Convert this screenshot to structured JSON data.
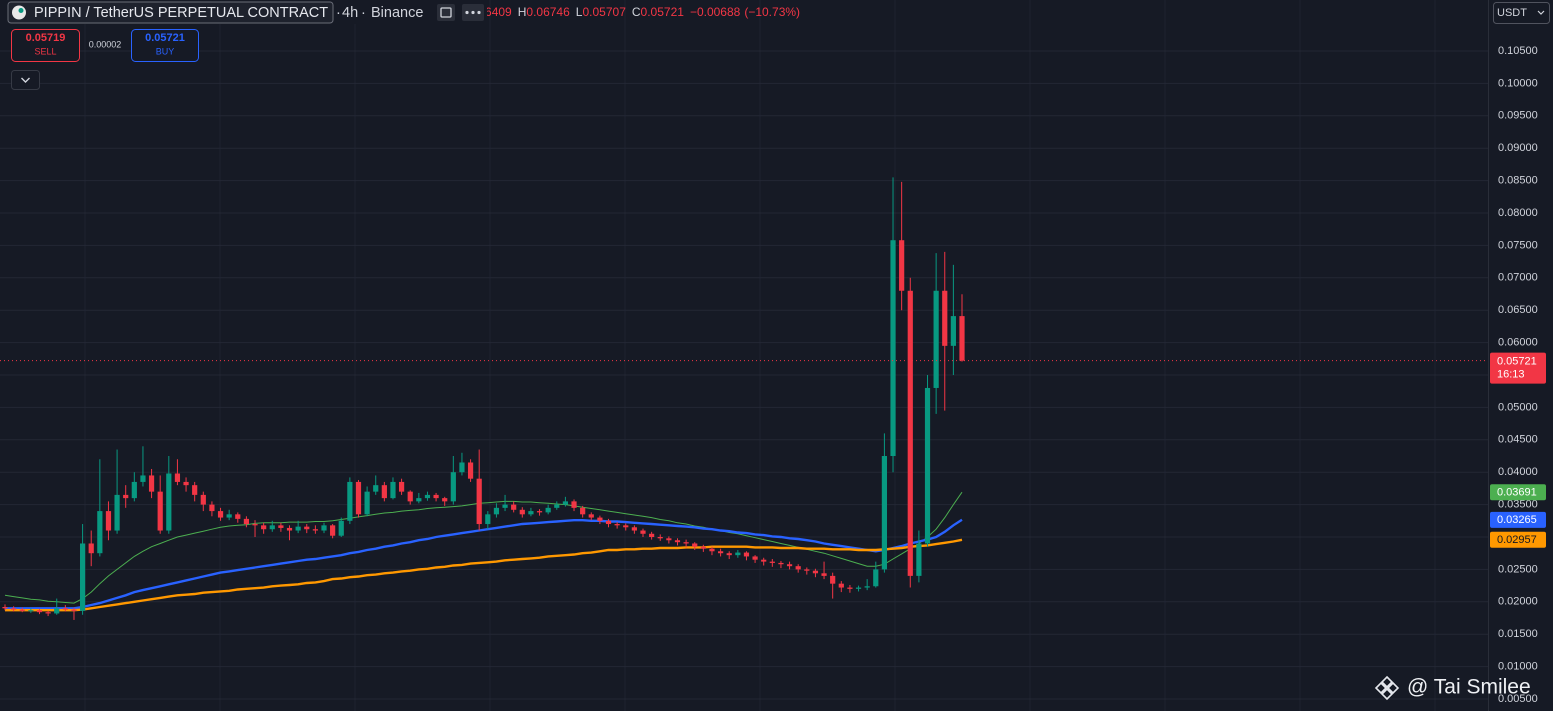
{
  "header": {
    "symbol": "PIPPIN / TetherUS PERPETUAL CONTRACT",
    "separator": "·",
    "interval": "4h",
    "exchange": "Binance",
    "ohlc_labels": [
      "O",
      "H",
      "L",
      "C"
    ],
    "change": "−0.00688",
    "change_pct": "(−10.73%)",
    "quote_currency": "USDT",
    "countdown": "16:13",
    "watermark": "@ Tai Smilee"
  },
  "order_panel": {
    "sell_price": "0.05719",
    "sell_label": "SELL",
    "spread": "0.00002",
    "buy_price": "0.05721",
    "buy_label": "BUY"
  },
  "chart_data": {
    "type": "candlestick",
    "up_color": "#089981",
    "down_color": "#f23645",
    "grid": true,
    "ylim": [
      0.00315,
      0.11287
    ],
    "yticks": [
      {
        "value": 0.005,
        "label": "0.00500"
      },
      {
        "value": 0.01,
        "label": "0.01000"
      },
      {
        "value": 0.015,
        "label": "0.01500"
      },
      {
        "value": 0.02,
        "label": "0.02000"
      },
      {
        "value": 0.025,
        "label": "0.02500"
      },
      {
        "value": 0.03,
        "label": "0.03000"
      },
      {
        "value": 0.035,
        "label": "0.03500"
      },
      {
        "value": 0.04,
        "label": "0.04000"
      },
      {
        "value": 0.045,
        "label": "0.04500"
      },
      {
        "value": 0.05,
        "label": "0.05000"
      },
      {
        "value": 0.055,
        "label": "0.05500"
      },
      {
        "value": 0.06,
        "label": "0.06000"
      },
      {
        "value": 0.065,
        "label": "0.06500"
      },
      {
        "value": 0.07,
        "label": "0.07000"
      },
      {
        "value": 0.075,
        "label": "0.07500"
      },
      {
        "value": 0.08,
        "label": "0.08000"
      },
      {
        "value": 0.085,
        "label": "0.08500"
      },
      {
        "value": 0.09,
        "label": "0.09000"
      },
      {
        "value": 0.095,
        "label": "0.09500"
      },
      {
        "value": 0.1,
        "label": "0.10000"
      },
      {
        "value": 0.105,
        "label": "0.10500"
      }
    ],
    "candles": [
      [
        0.0192,
        0.0196,
        0.0187,
        0.019
      ],
      [
        0.019,
        0.0193,
        0.0185,
        0.0188
      ],
      [
        0.0188,
        0.0191,
        0.0184,
        0.0186
      ],
      [
        0.0186,
        0.019,
        0.0183,
        0.0187
      ],
      [
        0.0187,
        0.0189,
        0.0181,
        0.0184
      ],
      [
        0.0184,
        0.0186,
        0.0178,
        0.0182
      ],
      [
        0.0182,
        0.0205,
        0.018,
        0.019
      ],
      [
        0.019,
        0.0195,
        0.0185,
        0.0188
      ],
      [
        0.0188,
        0.0191,
        0.0172,
        0.0186
      ],
      [
        0.0186,
        0.032,
        0.018,
        0.029
      ],
      [
        0.029,
        0.031,
        0.0255,
        0.0275
      ],
      [
        0.0275,
        0.042,
        0.027,
        0.034
      ],
      [
        0.034,
        0.0355,
        0.0295,
        0.031
      ],
      [
        0.031,
        0.0435,
        0.0305,
        0.0365
      ],
      [
        0.0365,
        0.038,
        0.0345,
        0.036
      ],
      [
        0.036,
        0.04,
        0.0355,
        0.0385
      ],
      [
        0.0385,
        0.044,
        0.0378,
        0.0395
      ],
      [
        0.0395,
        0.0405,
        0.036,
        0.037
      ],
      [
        0.037,
        0.0395,
        0.0305,
        0.031
      ],
      [
        0.031,
        0.0425,
        0.0305,
        0.0398
      ],
      [
        0.0398,
        0.042,
        0.038,
        0.0385
      ],
      [
        0.0385,
        0.0392,
        0.037,
        0.038
      ],
      [
        0.038,
        0.0385,
        0.0355,
        0.0365
      ],
      [
        0.0365,
        0.037,
        0.034,
        0.035
      ],
      [
        0.035,
        0.0355,
        0.0332,
        0.034
      ],
      [
        0.034,
        0.0345,
        0.0325,
        0.033
      ],
      [
        0.033,
        0.0342,
        0.0326,
        0.0335
      ],
      [
        0.0335,
        0.0338,
        0.0322,
        0.0328
      ],
      [
        0.0328,
        0.0332,
        0.0315,
        0.032
      ],
      [
        0.032,
        0.0326,
        0.03,
        0.0318
      ],
      [
        0.0318,
        0.0322,
        0.0305,
        0.0312
      ],
      [
        0.0312,
        0.0325,
        0.0308,
        0.0318
      ],
      [
        0.0318,
        0.0322,
        0.0308,
        0.0314
      ],
      [
        0.0314,
        0.0318,
        0.0295,
        0.031
      ],
      [
        0.031,
        0.0325,
        0.0306,
        0.0316
      ],
      [
        0.0316,
        0.032,
        0.0306,
        0.0312
      ],
      [
        0.0312,
        0.0318,
        0.0305,
        0.031
      ],
      [
        0.031,
        0.0322,
        0.0306,
        0.0318
      ],
      [
        0.0318,
        0.032,
        0.0298,
        0.0302
      ],
      [
        0.0302,
        0.033,
        0.03,
        0.0325
      ],
      [
        0.0325,
        0.0392,
        0.032,
        0.0385
      ],
      [
        0.0385,
        0.0388,
        0.033,
        0.0335
      ],
      [
        0.0335,
        0.0378,
        0.0332,
        0.037
      ],
      [
        0.037,
        0.0395,
        0.0365,
        0.038
      ],
      [
        0.038,
        0.0385,
        0.0355,
        0.036
      ],
      [
        0.036,
        0.0392,
        0.0358,
        0.0385
      ],
      [
        0.0385,
        0.039,
        0.0365,
        0.037
      ],
      [
        0.037,
        0.0372,
        0.035,
        0.0355
      ],
      [
        0.0355,
        0.0368,
        0.0352,
        0.036
      ],
      [
        0.036,
        0.037,
        0.0356,
        0.0365
      ],
      [
        0.0365,
        0.0368,
        0.0355,
        0.036
      ],
      [
        0.036,
        0.0362,
        0.0348,
        0.0355
      ],
      [
        0.0355,
        0.0425,
        0.035,
        0.04
      ],
      [
        0.04,
        0.043,
        0.0395,
        0.0415
      ],
      [
        0.0415,
        0.042,
        0.0385,
        0.039
      ],
      [
        0.039,
        0.0435,
        0.031,
        0.032
      ],
      [
        0.032,
        0.034,
        0.0312,
        0.0335
      ],
      [
        0.0335,
        0.0352,
        0.033,
        0.0345
      ],
      [
        0.0345,
        0.0365,
        0.034,
        0.035
      ],
      [
        0.035,
        0.0355,
        0.0338,
        0.0342
      ],
      [
        0.0342,
        0.0346,
        0.033,
        0.0335
      ],
      [
        0.0335,
        0.0345,
        0.0332,
        0.034
      ],
      [
        0.034,
        0.0343,
        0.0333,
        0.0338
      ],
      [
        0.0338,
        0.035,
        0.0335,
        0.0345
      ],
      [
        0.0345,
        0.0355,
        0.0342,
        0.035
      ],
      [
        0.035,
        0.0362,
        0.0347,
        0.0355
      ],
      [
        0.0355,
        0.0358,
        0.034,
        0.0345
      ],
      [
        0.0345,
        0.0348,
        0.033,
        0.0335
      ],
      [
        0.0335,
        0.0338,
        0.0326,
        0.033
      ],
      [
        0.033,
        0.0333,
        0.032,
        0.0325
      ],
      [
        0.0325,
        0.0328,
        0.0315,
        0.032
      ],
      [
        0.032,
        0.0323,
        0.0313,
        0.0318
      ],
      [
        0.0318,
        0.0321,
        0.031,
        0.0315
      ],
      [
        0.0315,
        0.0318,
        0.0305,
        0.031
      ],
      [
        0.031,
        0.0313,
        0.03,
        0.0305
      ],
      [
        0.0305,
        0.0308,
        0.0296,
        0.03
      ],
      [
        0.03,
        0.0304,
        0.0294,
        0.0298
      ],
      [
        0.0298,
        0.0301,
        0.029,
        0.0295
      ],
      [
        0.0295,
        0.0298,
        0.0287,
        0.0292
      ],
      [
        0.0292,
        0.0296,
        0.0284,
        0.029
      ],
      [
        0.029,
        0.0292,
        0.028,
        0.0285
      ],
      [
        0.0285,
        0.0288,
        0.0277,
        0.0282
      ],
      [
        0.0282,
        0.0285,
        0.0272,
        0.0278
      ],
      [
        0.0278,
        0.0282,
        0.027,
        0.0275
      ],
      [
        0.0275,
        0.0278,
        0.0266,
        0.0272
      ],
      [
        0.0272,
        0.028,
        0.0268,
        0.0276
      ],
      [
        0.0276,
        0.0278,
        0.0264,
        0.027
      ],
      [
        0.027,
        0.0272,
        0.026,
        0.0265
      ],
      [
        0.0265,
        0.0268,
        0.0256,
        0.0262
      ],
      [
        0.0262,
        0.0266,
        0.0254,
        0.026
      ],
      [
        0.026,
        0.0263,
        0.0252,
        0.0258
      ],
      [
        0.0258,
        0.0262,
        0.025,
        0.0255
      ],
      [
        0.0255,
        0.0258,
        0.0245,
        0.025
      ],
      [
        0.025,
        0.0253,
        0.0242,
        0.0248
      ],
      [
        0.0248,
        0.0251,
        0.0238,
        0.0244
      ],
      [
        0.0244,
        0.0262,
        0.0235,
        0.024
      ],
      [
        0.024,
        0.0245,
        0.0205,
        0.0228
      ],
      [
        0.0228,
        0.0232,
        0.0215,
        0.0222
      ],
      [
        0.0222,
        0.0226,
        0.0214,
        0.022
      ],
      [
        0.022,
        0.0225,
        0.0216,
        0.0222
      ],
      [
        0.0222,
        0.0235,
        0.0218,
        0.0224
      ],
      [
        0.0224,
        0.0262,
        0.0222,
        0.025
      ],
      [
        0.025,
        0.046,
        0.0245,
        0.0425
      ],
      [
        0.0425,
        0.0855,
        0.04,
        0.0758
      ],
      [
        0.0758,
        0.0848,
        0.065,
        0.068
      ],
      [
        0.068,
        0.07,
        0.0222,
        0.024
      ],
      [
        0.024,
        0.031,
        0.023,
        0.029
      ],
      [
        0.029,
        0.055,
        0.0285,
        0.053
      ],
      [
        0.053,
        0.0738,
        0.049,
        0.068
      ],
      [
        0.068,
        0.074,
        0.0495,
        0.0595
      ],
      [
        0.0595,
        0.072,
        0.055,
        0.06409
      ],
      [
        0.06409,
        0.06746,
        0.05707,
        0.05721
      ]
    ],
    "lines": [
      {
        "color": "#4caf50",
        "label_text_color": "#ffffff",
        "values": [
          0.021,
          0.0208,
          0.0206,
          0.0204,
          0.0203,
          0.0201,
          0.02,
          0.0199,
          0.0198,
          0.0205,
          0.0215,
          0.0228,
          0.024,
          0.025,
          0.026,
          0.027,
          0.0278,
          0.0285,
          0.029,
          0.0295,
          0.03,
          0.0303,
          0.0306,
          0.0309,
          0.0312,
          0.0315,
          0.0317,
          0.0318,
          0.0319,
          0.0321,
          0.0322,
          0.0322,
          0.0322,
          0.0323,
          0.0323,
          0.0323,
          0.0324,
          0.0324,
          0.0325,
          0.0327,
          0.0329,
          0.0331,
          0.0333,
          0.0335,
          0.0337,
          0.0338,
          0.034,
          0.0341,
          0.0342,
          0.0344,
          0.0345,
          0.0346,
          0.0347,
          0.0348,
          0.035,
          0.0352,
          0.0353,
          0.0354,
          0.0355,
          0.0355,
          0.0354,
          0.0354,
          0.0353,
          0.0352,
          0.0351,
          0.035,
          0.0348,
          0.0346,
          0.0344,
          0.0342,
          0.034,
          0.0338,
          0.0336,
          0.0334,
          0.0332,
          0.033,
          0.0327,
          0.0325,
          0.0322,
          0.032,
          0.0317,
          0.0315,
          0.0312,
          0.031,
          0.0307,
          0.0305,
          0.0302,
          0.0299,
          0.0296,
          0.0293,
          0.029,
          0.0287,
          0.0284,
          0.0281,
          0.0278,
          0.0275,
          0.0271,
          0.0267,
          0.0263,
          0.0259,
          0.0255,
          0.0255,
          0.0258,
          0.0266,
          0.0274,
          0.0282,
          0.029,
          0.03,
          0.0312,
          0.033,
          0.035,
          0.03691
        ]
      },
      {
        "color": "#2962ff",
        "label_text_color": "#ffffff",
        "values": [
          0.019,
          0.019,
          0.019,
          0.019,
          0.019,
          0.019,
          0.019,
          0.019,
          0.019,
          0.0192,
          0.0195,
          0.0198,
          0.0202,
          0.0206,
          0.021,
          0.0215,
          0.0218,
          0.0221,
          0.0224,
          0.0227,
          0.023,
          0.0233,
          0.0236,
          0.0239,
          0.0242,
          0.0245,
          0.0247,
          0.0249,
          0.0251,
          0.0253,
          0.0255,
          0.0257,
          0.0259,
          0.0261,
          0.0263,
          0.0265,
          0.0266,
          0.0268,
          0.027,
          0.0272,
          0.0275,
          0.0277,
          0.028,
          0.0282,
          0.0285,
          0.0287,
          0.029,
          0.0292,
          0.0295,
          0.0297,
          0.03,
          0.0302,
          0.0304,
          0.0306,
          0.0308,
          0.031,
          0.0312,
          0.0314,
          0.0316,
          0.0318,
          0.032,
          0.0321,
          0.0322,
          0.0323,
          0.0324,
          0.0325,
          0.0326,
          0.0326,
          0.0325,
          0.0325,
          0.0324,
          0.0324,
          0.0323,
          0.0322,
          0.0321,
          0.032,
          0.0319,
          0.0318,
          0.0317,
          0.0316,
          0.0315,
          0.0313,
          0.0312,
          0.031,
          0.0309,
          0.0307,
          0.0306,
          0.0304,
          0.0303,
          0.0301,
          0.03,
          0.0298,
          0.0297,
          0.0295,
          0.0293,
          0.029,
          0.0288,
          0.0286,
          0.0284,
          0.0282,
          0.028,
          0.0278,
          0.028,
          0.0283,
          0.0286,
          0.029,
          0.0293,
          0.0296,
          0.03,
          0.0308,
          0.0318,
          0.03265
        ]
      },
      {
        "color": "#ff9800",
        "label_text_color": "#131722",
        "values": [
          0.0187,
          0.0187,
          0.0187,
          0.0187,
          0.0187,
          0.0187,
          0.0187,
          0.0187,
          0.0187,
          0.0188,
          0.019,
          0.0192,
          0.0194,
          0.0196,
          0.0198,
          0.02,
          0.0202,
          0.0204,
          0.0206,
          0.0208,
          0.021,
          0.0211,
          0.0212,
          0.0214,
          0.0215,
          0.0216,
          0.0217,
          0.0219,
          0.022,
          0.0221,
          0.0222,
          0.0224,
          0.0225,
          0.0226,
          0.0227,
          0.0229,
          0.023,
          0.0232,
          0.0235,
          0.0236,
          0.0238,
          0.0239,
          0.0241,
          0.0242,
          0.0244,
          0.0245,
          0.0247,
          0.0248,
          0.025,
          0.0251,
          0.0253,
          0.0254,
          0.0256,
          0.0257,
          0.0259,
          0.026,
          0.0261,
          0.0262,
          0.0264,
          0.0265,
          0.0266,
          0.0267,
          0.0268,
          0.027,
          0.0271,
          0.0272,
          0.0273,
          0.0275,
          0.0276,
          0.0278,
          0.028,
          0.028,
          0.0281,
          0.0281,
          0.0282,
          0.0282,
          0.0283,
          0.0283,
          0.0283,
          0.0284,
          0.0284,
          0.0284,
          0.0285,
          0.0285,
          0.0285,
          0.0285,
          0.0285,
          0.0284,
          0.0284,
          0.0284,
          0.0283,
          0.0283,
          0.0283,
          0.0282,
          0.0282,
          0.0282,
          0.0281,
          0.0281,
          0.0281,
          0.028,
          0.028,
          0.028,
          0.0281,
          0.0282,
          0.0283,
          0.0285,
          0.0286,
          0.0287,
          0.0289,
          0.0291,
          0.0293,
          0.02957
        ]
      }
    ]
  }
}
